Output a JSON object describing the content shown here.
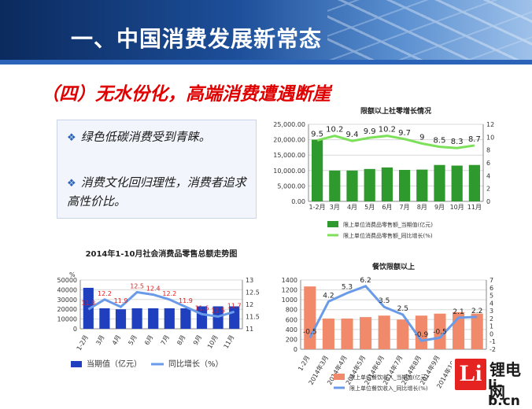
{
  "title": "一、中国消费发展新常态",
  "subtitle": "（四）无水份化，高端消费遭遇断崖",
  "bullets": [
    {
      "icon": "diamond-bullet-icon",
      "text": "绿色低碳消费受到青睐。"
    },
    {
      "icon": "diamond-bullet-icon",
      "text": "消费文化回归理性，消费者追求高性价比。"
    }
  ],
  "colors": {
    "header_dark": "#0b2a5e",
    "accent_red": "#e00000",
    "bar_green": "#2e9a2e",
    "bar_blue": "#1f3fbf",
    "bar_orange": "#f08a6a",
    "line_blue": "#6a9be8"
  },
  "chart_data": [
    {
      "type": "bar",
      "title": "限额以上社零增长情况",
      "categories": [
        "1-2月",
        "3月",
        "4月",
        "5月",
        "6月",
        "7月",
        "8月",
        "9月",
        "10月",
        "11月"
      ],
      "series": [
        {
          "name": "限上单位消费品零售额_当期值(亿元)",
          "axis": "left",
          "values": [
            20000,
            10000,
            10000,
            10500,
            11000,
            10200,
            10300,
            11800,
            11600,
            11800
          ]
        },
        {
          "name": "限上单位消费品零售额_同比增长(%)",
          "type": "line",
          "axis": "right",
          "values": [
            9.5,
            10.2,
            9.4,
            9.9,
            10.2,
            9.7,
            9,
            8.5,
            8.3,
            8.7
          ]
        }
      ],
      "yticks_left": [
        "0.00",
        "5,000.00",
        "10,000.00",
        "15,000.00",
        "20,000.00",
        "25,000.00"
      ],
      "yticks_right": [
        "0",
        "2",
        "4",
        "6",
        "8",
        "10",
        "12"
      ],
      "ylim_left": [
        0,
        25000
      ],
      "ylim_right": [
        0,
        12
      ]
    },
    {
      "type": "bar",
      "title": "2014年1-10月社会消费品零售总额走势图",
      "categories": [
        "1-2月",
        "3月",
        "4月",
        "5月",
        "6月",
        "7月",
        "8月",
        "9月",
        "10月",
        "11月"
      ],
      "series": [
        {
          "name": "当期值（亿元）",
          "axis": "left",
          "values": [
            42000,
            21000,
            20000,
            21000,
            21000,
            21000,
            21000,
            23000,
            23000,
            23000
          ]
        },
        {
          "name": "同比增长（%）",
          "type": "line",
          "axis": "right",
          "values": [
            11.8,
            12.2,
            11.9,
            12.5,
            12.4,
            12.2,
            11.9,
            11.6,
            11.5,
            11.7
          ]
        }
      ],
      "labels_shown": [
        "11.8",
        "12.2",
        "11.9",
        "12.5",
        "12.4",
        "12.2",
        "11.9",
        "11.6",
        "11.5",
        "11.7"
      ],
      "yunit": "%",
      "yticks_left": [
        "0",
        "10000",
        "20000",
        "30000",
        "40000",
        "50000"
      ],
      "yticks_right": [
        "11",
        "11.5",
        "12",
        "12.5",
        "13"
      ],
      "ylim_left": [
        0,
        50000
      ],
      "ylim_right": [
        11,
        13
      ]
    },
    {
      "type": "bar",
      "title": "餐饮限额以上",
      "categories": [
        "1-2月",
        "2014年3月",
        "2014年4月",
        "2014年5月",
        "2014年6月",
        "2014年7月",
        "2014年8月",
        "2014年9月",
        "2014年10月",
        "2014年11月"
      ],
      "series": [
        {
          "name": "限上单位餐饮收入_当期值(亿元)",
          "axis": "left",
          "values": [
            1270,
            620,
            620,
            650,
            680,
            600,
            680,
            720,
            750,
            720
          ]
        },
        {
          "name": "限上单位餐饮收入_同比增长(%)",
          "type": "line",
          "axis": "right",
          "values": [
            -0.5,
            4.2,
            5.3,
            6.2,
            3.5,
            2.5,
            -0.9,
            -0.5,
            2.1,
            2.2
          ]
        }
      ],
      "yticks_left": [
        "0",
        "200",
        "400",
        "600",
        "800",
        "1000",
        "1200",
        "1400"
      ],
      "yticks_right": [
        "-2",
        "-1",
        "0",
        "1",
        "2",
        "3",
        "4",
        "5",
        "6",
        "7"
      ],
      "ylim_left": [
        0,
        1400
      ],
      "ylim_right": [
        -2,
        7
      ]
    }
  ],
  "logo": {
    "name": "锂电网",
    "url": "li-b.cn",
    "glyph": "Li"
  }
}
